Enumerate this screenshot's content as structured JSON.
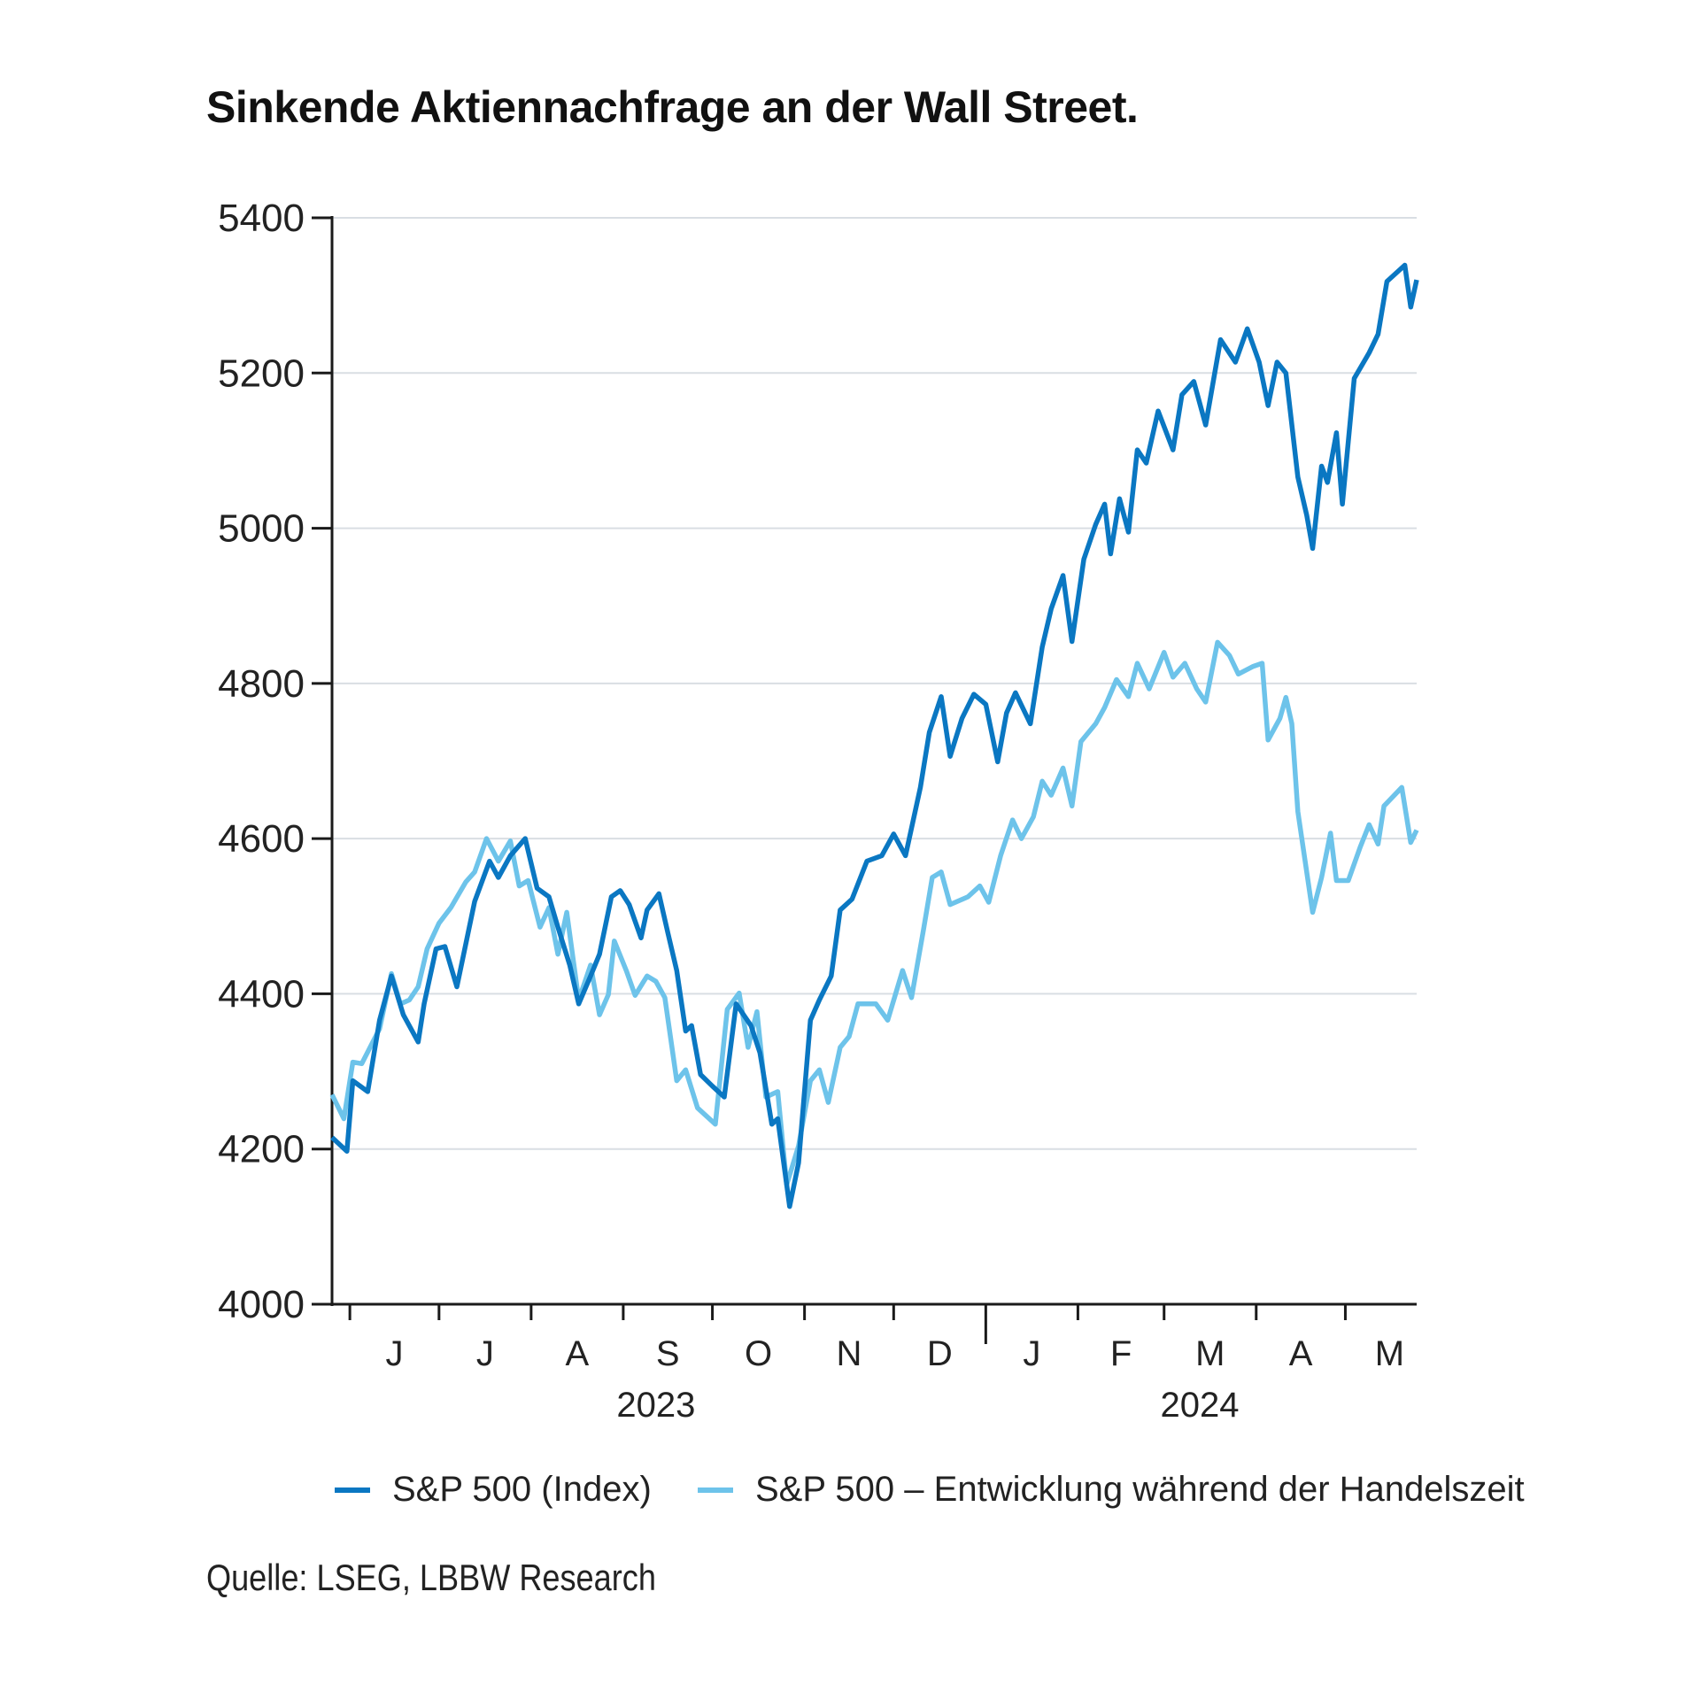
{
  "title": "Sinkende Aktiennachfrage an der Wall Street.",
  "source": "Quelle: LSEG, LBBW Research",
  "legend": {
    "index_label": "S&P 500 (Index)",
    "session_label": "S&P 500 – Entwicklung während der Handelszeit"
  },
  "colors": {
    "index": "#0a77c2",
    "session": "#6dc3ea",
    "grid": "#d9dee3",
    "axis": "#1a1a1a"
  },
  "chart_data": {
    "type": "line",
    "title": "Sinkende Aktiennachfrage an der Wall Street.",
    "xlabel": "",
    "ylabel": "",
    "ylim": [
      4000,
      5400
    ],
    "yticks": [
      "4000",
      "4200",
      "4400",
      "4600",
      "4800",
      "5000",
      "5200",
      "5400"
    ],
    "xlim": [
      "2023-05-26",
      "2024-05-25"
    ],
    "month_labels": [
      "J",
      "J",
      "A",
      "S",
      "O",
      "N",
      "D",
      "J",
      "F",
      "M",
      "A",
      "M"
    ],
    "month_starts": [
      "2023-06-01",
      "2023-07-01",
      "2023-08-01",
      "2023-09-01",
      "2023-10-01",
      "2023-11-01",
      "2023-12-01",
      "2024-01-01",
      "2024-02-01",
      "2024-03-01",
      "2024-04-01",
      "2024-05-01"
    ],
    "year_labels": [
      "2023",
      "2024"
    ],
    "grid": "horizontal",
    "legend_position": "bottom",
    "series": [
      {
        "name": "S&P 500 (Index)",
        "x": [
          "2023-05-26",
          "2023-05-31",
          "2023-06-02",
          "2023-06-07",
          "2023-06-11",
          "2023-06-15",
          "2023-06-19",
          "2023-06-24",
          "2023-06-26",
          "2023-06-30",
          "2023-07-03",
          "2023-07-07",
          "2023-07-13",
          "2023-07-18",
          "2023-07-21",
          "2023-07-25",
          "2023-07-30",
          "2023-08-03",
          "2023-08-07",
          "2023-08-10",
          "2023-08-14",
          "2023-08-17",
          "2023-08-21",
          "2023-08-24",
          "2023-08-28",
          "2023-08-31",
          "2023-09-03",
          "2023-09-07",
          "2023-09-09",
          "2023-09-13",
          "2023-09-16",
          "2023-09-19",
          "2023-09-22",
          "2023-09-24",
          "2023-09-27",
          "2023-10-01",
          "2023-10-05",
          "2023-10-09",
          "2023-10-14",
          "2023-10-17",
          "2023-10-21",
          "2023-10-23",
          "2023-10-27",
          "2023-10-30",
          "2023-11-03",
          "2023-11-06",
          "2023-11-10",
          "2023-11-13",
          "2023-11-17",
          "2023-11-22",
          "2023-11-27",
          "2023-12-01",
          "2023-12-05",
          "2023-12-10",
          "2023-12-13",
          "2023-12-17",
          "2023-12-20",
          "2023-12-24",
          "2023-12-28",
          "2024-01-01",
          "2024-01-05",
          "2024-01-08",
          "2024-01-11",
          "2024-01-16",
          "2024-01-20",
          "2024-01-23",
          "2024-01-27",
          "2024-01-30",
          "2024-02-03",
          "2024-02-07",
          "2024-02-10",
          "2024-02-12",
          "2024-02-15",
          "2024-02-18",
          "2024-02-21",
          "2024-02-24",
          "2024-02-28",
          "2024-03-04",
          "2024-03-07",
          "2024-03-11",
          "2024-03-15",
          "2024-03-20",
          "2024-03-25",
          "2024-03-29",
          "2024-04-02",
          "2024-04-05",
          "2024-04-08",
          "2024-04-11",
          "2024-04-15",
          "2024-04-18",
          "2024-04-20",
          "2024-04-23",
          "2024-04-25",
          "2024-04-28",
          "2024-04-30",
          "2024-05-04",
          "2024-05-09",
          "2024-05-12",
          "2024-05-15",
          "2024-05-21",
          "2024-05-23",
          "2024-05-25"
        ],
        "y": [
          4215,
          4197,
          4288,
          4274,
          4366,
          4423,
          4373,
          4338,
          4387,
          4458,
          4461,
          4409,
          4519,
          4571,
          4550,
          4578,
          4600,
          4536,
          4525,
          4486,
          4437,
          4387,
          4423,
          4451,
          4525,
          4533,
          4515,
          4472,
          4508,
          4529,
          4479,
          4430,
          4352,
          4359,
          4296,
          4281,
          4267,
          4387,
          4359,
          4324,
          4232,
          4239,
          4126,
          4182,
          4366,
          4392,
          4423,
          4508,
          4522,
          4571,
          4578,
          4606,
          4578,
          4666,
          4737,
          4783,
          4706,
          4755,
          4786,
          4773,
          4699,
          4762,
          4788,
          4748,
          4847,
          4896,
          4939,
          4854,
          4960,
          5005,
          5031,
          4967,
          5038,
          4995,
          5101,
          5084,
          5151,
          5101,
          5172,
          5189,
          5133,
          5243,
          5214,
          5257,
          5214,
          5158,
          5214,
          5200,
          5066,
          5017,
          4974,
          5080,
          5059,
          5123,
          5031,
          5193,
          5226,
          5250,
          5318,
          5339,
          5285,
          5320
        ]
      },
      {
        "name": "S&P 500 – Entwicklung während der Handelszeit",
        "x": [
          "2023-05-26",
          "2023-05-30",
          "2023-06-02",
          "2023-06-05",
          "2023-06-11",
          "2023-06-15",
          "2023-06-18",
          "2023-06-21",
          "2023-06-24",
          "2023-06-27",
          "2023-07-01",
          "2023-07-05",
          "2023-07-10",
          "2023-07-13",
          "2023-07-17",
          "2023-07-21",
          "2023-07-25",
          "2023-07-28",
          "2023-07-31",
          "2023-08-04",
          "2023-08-07",
          "2023-08-10",
          "2023-08-13",
          "2023-08-17",
          "2023-08-21",
          "2023-08-24",
          "2023-08-27",
          "2023-08-29",
          "2023-09-02",
          "2023-09-05",
          "2023-09-09",
          "2023-09-12",
          "2023-09-15",
          "2023-09-19",
          "2023-09-22",
          "2023-09-26",
          "2023-10-02",
          "2023-10-06",
          "2023-10-10",
          "2023-10-13",
          "2023-10-16",
          "2023-10-19",
          "2023-10-23",
          "2023-10-26",
          "2023-10-30",
          "2023-11-03",
          "2023-11-06",
          "2023-11-09",
          "2023-11-13",
          "2023-11-16",
          "2023-11-19",
          "2023-11-25",
          "2023-11-29",
          "2023-12-04",
          "2023-12-07",
          "2023-12-11",
          "2023-12-14",
          "2023-12-17",
          "2023-12-20",
          "2023-12-26",
          "2023-12-30",
          "2024-01-02",
          "2024-01-06",
          "2024-01-10",
          "2024-01-13",
          "2024-01-17",
          "2024-01-20",
          "2024-01-23",
          "2024-01-27",
          "2024-01-30",
          "2024-02-02",
          "2024-02-07",
          "2024-02-10",
          "2024-02-14",
          "2024-02-18",
          "2024-02-21",
          "2024-02-25",
          "2024-03-01",
          "2024-03-04",
          "2024-03-08",
          "2024-03-12",
          "2024-03-15",
          "2024-03-19",
          "2024-03-23",
          "2024-03-26",
          "2024-03-31",
          "2024-04-03",
          "2024-04-05",
          "2024-04-09",
          "2024-04-11",
          "2024-04-13",
          "2024-04-15",
          "2024-04-20",
          "2024-04-23",
          "2024-04-26",
          "2024-04-28",
          "2024-05-02",
          "2024-05-06",
          "2024-05-09",
          "2024-05-12",
          "2024-05-14",
          "2024-05-20",
          "2024-05-23",
          "2024-05-25"
        ],
        "y": [
          4270,
          4239,
          4312,
          4310,
          4355,
          4426,
          4387,
          4392,
          4409,
          4458,
          4491,
          4511,
          4544,
          4557,
          4600,
          4571,
          4597,
          4539,
          4546,
          4486,
          4511,
          4451,
          4505,
          4392,
          4437,
          4373,
          4399,
          4468,
          4430,
          4398,
          4423,
          4416,
          4395,
          4288,
          4302,
          4253,
          4232,
          4380,
          4401,
          4331,
          4377,
          4267,
          4274,
          4154,
          4204,
          4288,
          4302,
          4260,
          4331,
          4345,
          4387,
          4387,
          4366,
          4430,
          4395,
          4482,
          4550,
          4557,
          4515,
          4525,
          4539,
          4518,
          4578,
          4624,
          4600,
          4628,
          4674,
          4656,
          4691,
          4642,
          4725,
          4748,
          4769,
          4805,
          4783,
          4826,
          4793,
          4840,
          4808,
          4826,
          4793,
          4776,
          4853,
          4836,
          4812,
          4822,
          4826,
          4727,
          4755,
          4782,
          4748,
          4635,
          4505,
          4550,
          4607,
          4546,
          4546,
          4589,
          4618,
          4593,
          4642,
          4666,
          4595,
          4611
        ]
      }
    ]
  }
}
